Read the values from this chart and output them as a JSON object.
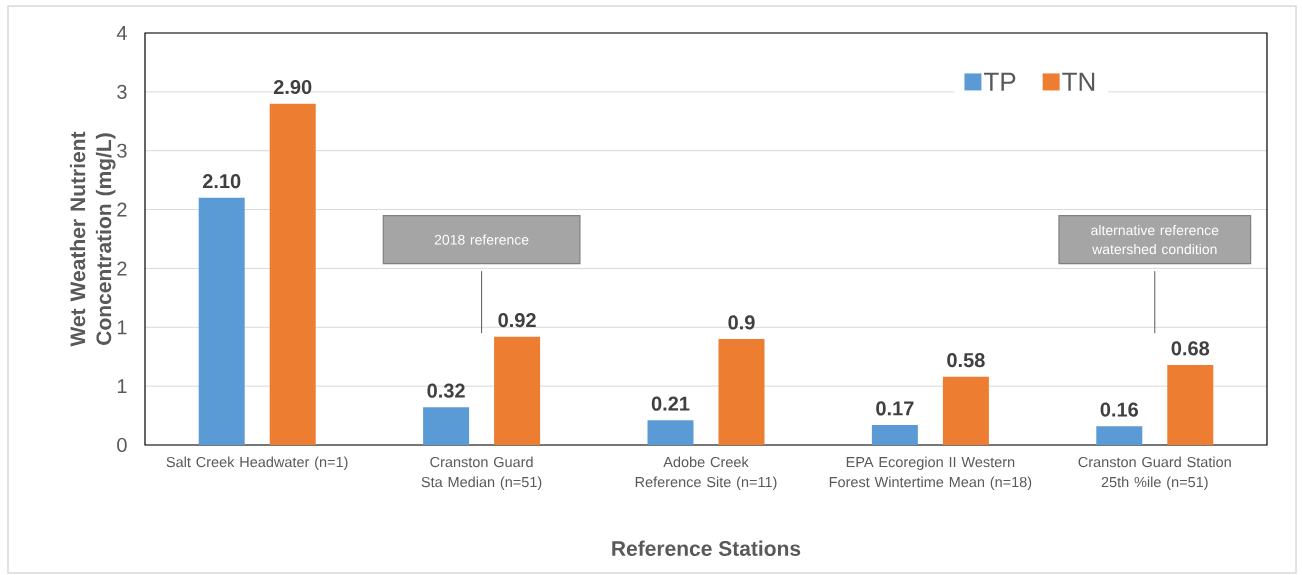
{
  "chart_data": {
    "type": "bar",
    "xlabel": "Reference Stations",
    "ylabel": "Wet Weather Nutrient Concentration (mg/L)",
    "categories": [
      "Salt Creek Headwater (n=1)",
      "Cranston Guard Sta Median (n=51)",
      "Adobe Creek Reference Site (n=11)",
      "EPA Ecoregion II Western Forest Wintertime Mean (n=18)",
      "Cranston Guard Station 25th %ile (n=51)"
    ],
    "series": [
      {
        "name": "TP",
        "color": "#5b9bd5",
        "values": [
          2.1,
          0.32,
          0.21,
          0.17,
          0.16
        ],
        "value_labels": [
          "2.10",
          "0.32",
          "0.21",
          "0.17",
          "0.16"
        ]
      },
      {
        "name": "TN",
        "color": "#ed7d31",
        "values": [
          2.9,
          0.92,
          0.9,
          0.58,
          0.68
        ],
        "value_labels": [
          "2.90",
          "0.92",
          "0.9",
          "0.58",
          "0.68"
        ]
      }
    ],
    "ylim": [
      0,
      3.5
    ],
    "yticks": [
      0,
      {
        "value": 0.5,
        "label": "1"
      },
      1,
      {
        "value": 1.5,
        "label": "2"
      },
      2,
      {
        "value": 2.5,
        "label": "3"
      },
      3,
      {
        "value": 3.5,
        "label": "4"
      }
    ],
    "grid": "y",
    "legend": "top right",
    "annotations": [
      "2018 reference",
      "alternative reference watershed condition"
    ]
  }
}
